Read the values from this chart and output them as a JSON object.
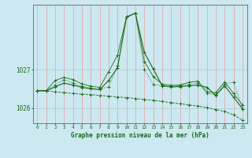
{
  "title": "Graphe pression niveau de la mer (hPa)",
  "bg_color": "#cce8f0",
  "line_color": "#1a6b1a",
  "xlim": [
    -0.5,
    23.5
  ],
  "ylim": [
    1025.6,
    1028.7
  ],
  "yticks": [
    1026,
    1027
  ],
  "xticks": [
    0,
    1,
    2,
    3,
    4,
    5,
    6,
    7,
    8,
    9,
    10,
    11,
    12,
    13,
    14,
    15,
    16,
    17,
    18,
    19,
    20,
    21,
    22,
    23
  ],
  "series": {
    "line1_x": [
      0,
      1,
      2,
      3,
      4,
      5,
      6,
      7,
      8,
      9,
      10,
      11,
      12,
      13,
      14,
      15,
      16,
      17,
      18,
      19,
      20,
      21,
      22,
      23
    ],
    "line1_y": [
      1026.45,
      1026.45,
      1026.42,
      1026.4,
      1026.38,
      1026.36,
      1026.35,
      1026.33,
      1026.31,
      1026.29,
      1026.27,
      1026.25,
      1026.22,
      1026.2,
      1026.17,
      1026.14,
      1026.11,
      1026.08,
      1026.05,
      1026.01,
      1025.96,
      1025.91,
      1025.82,
      1025.68
    ],
    "line2_x": [
      0,
      1,
      2,
      3,
      4,
      5,
      6,
      7,
      8,
      9,
      10,
      11,
      12,
      13,
      14,
      15,
      16,
      17,
      18,
      19,
      20,
      21,
      22,
      23
    ],
    "line2_y": [
      1026.45,
      1026.45,
      1026.55,
      1026.65,
      1026.6,
      1026.54,
      1026.5,
      1026.48,
      1026.72,
      1027.05,
      1028.38,
      1028.48,
      1027.45,
      1027.02,
      1026.58,
      1026.55,
      1026.56,
      1026.58,
      1026.6,
      1026.54,
      1026.33,
      1026.58,
      1026.28,
      1025.98
    ],
    "line3_x": [
      0,
      1,
      2,
      3,
      4,
      5,
      6,
      7,
      8,
      9,
      10,
      11,
      12,
      13,
      14,
      15,
      16,
      17,
      18,
      19,
      20,
      21,
      22,
      23
    ],
    "line3_y": [
      1026.45,
      1026.45,
      1026.6,
      1026.74,
      1026.65,
      1026.57,
      1026.52,
      1026.5,
      1026.55,
      1027.1,
      1028.38,
      1028.48,
      1027.0,
      1026.62,
      1026.57,
      1026.57,
      1026.59,
      1026.62,
      1026.65,
      1026.38,
      1026.35,
      1026.62,
      1026.68,
      1025.98
    ],
    "line4_x": [
      0,
      1,
      2,
      3,
      4,
      5,
      6,
      7,
      8,
      9,
      10,
      11,
      12,
      13,
      14,
      15,
      16,
      17,
      18,
      19,
      20,
      21,
      22,
      23
    ],
    "line4_y": [
      1026.45,
      1026.45,
      1026.72,
      1026.8,
      1026.74,
      1026.63,
      1026.57,
      1026.54,
      1026.95,
      1027.38,
      1028.38,
      1028.48,
      1027.22,
      1026.82,
      1026.62,
      1026.59,
      1026.6,
      1026.67,
      1026.7,
      1026.42,
      1026.4,
      1026.68,
      1026.38,
      1026.08
    ]
  }
}
